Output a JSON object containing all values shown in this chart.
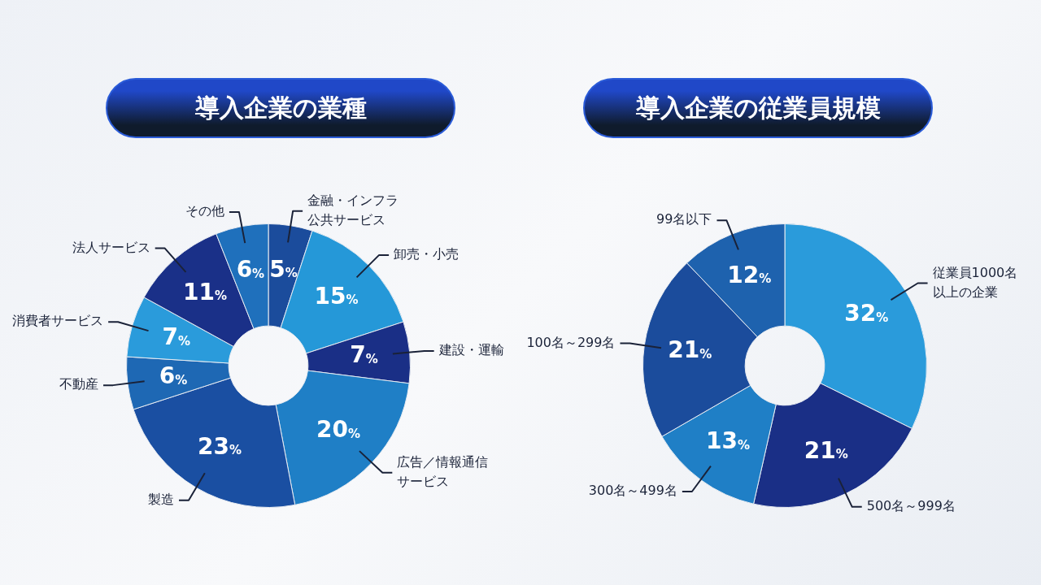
{
  "chart_data": [
    {
      "type": "donut",
      "title": "導入企業の業種",
      "categories": [
        "金融・インフラ公共サービス",
        "卸売・小売",
        "建設・運輸",
        "広告／情報通信サービス",
        "製造",
        "不動産",
        "消費者サービス",
        "法人サービス",
        "その他"
      ],
      "values": [
        5,
        15,
        7,
        20,
        23,
        6,
        7,
        11,
        6
      ],
      "colors": [
        "#1b4c9c",
        "#2598d8",
        "#1a2f86",
        "#1f7fc6",
        "#1a4fa2",
        "#1e68b4",
        "#2a9bdb",
        "#1a3088",
        "#1f70bc"
      ],
      "value_labels": [
        "5%",
        "15%",
        "7%",
        "20%",
        "23%",
        "6%",
        "7%",
        "11%",
        "6%"
      ]
    },
    {
      "type": "donut",
      "title": "導入企業の従業員規模",
      "categories": [
        "従業員1000名以上の企業",
        "500名～999名",
        "300名～499名",
        "100名～299名",
        "99名以下"
      ],
      "values": [
        32,
        21,
        13,
        21,
        12
      ],
      "colors": [
        "#2a9bdb",
        "#1a2f86",
        "#1f7fc6",
        "#1b4c9c",
        "#1e62ae"
      ],
      "value_labels": [
        "32%",
        "21%",
        "13%",
        "21%",
        "12%"
      ]
    }
  ]
}
